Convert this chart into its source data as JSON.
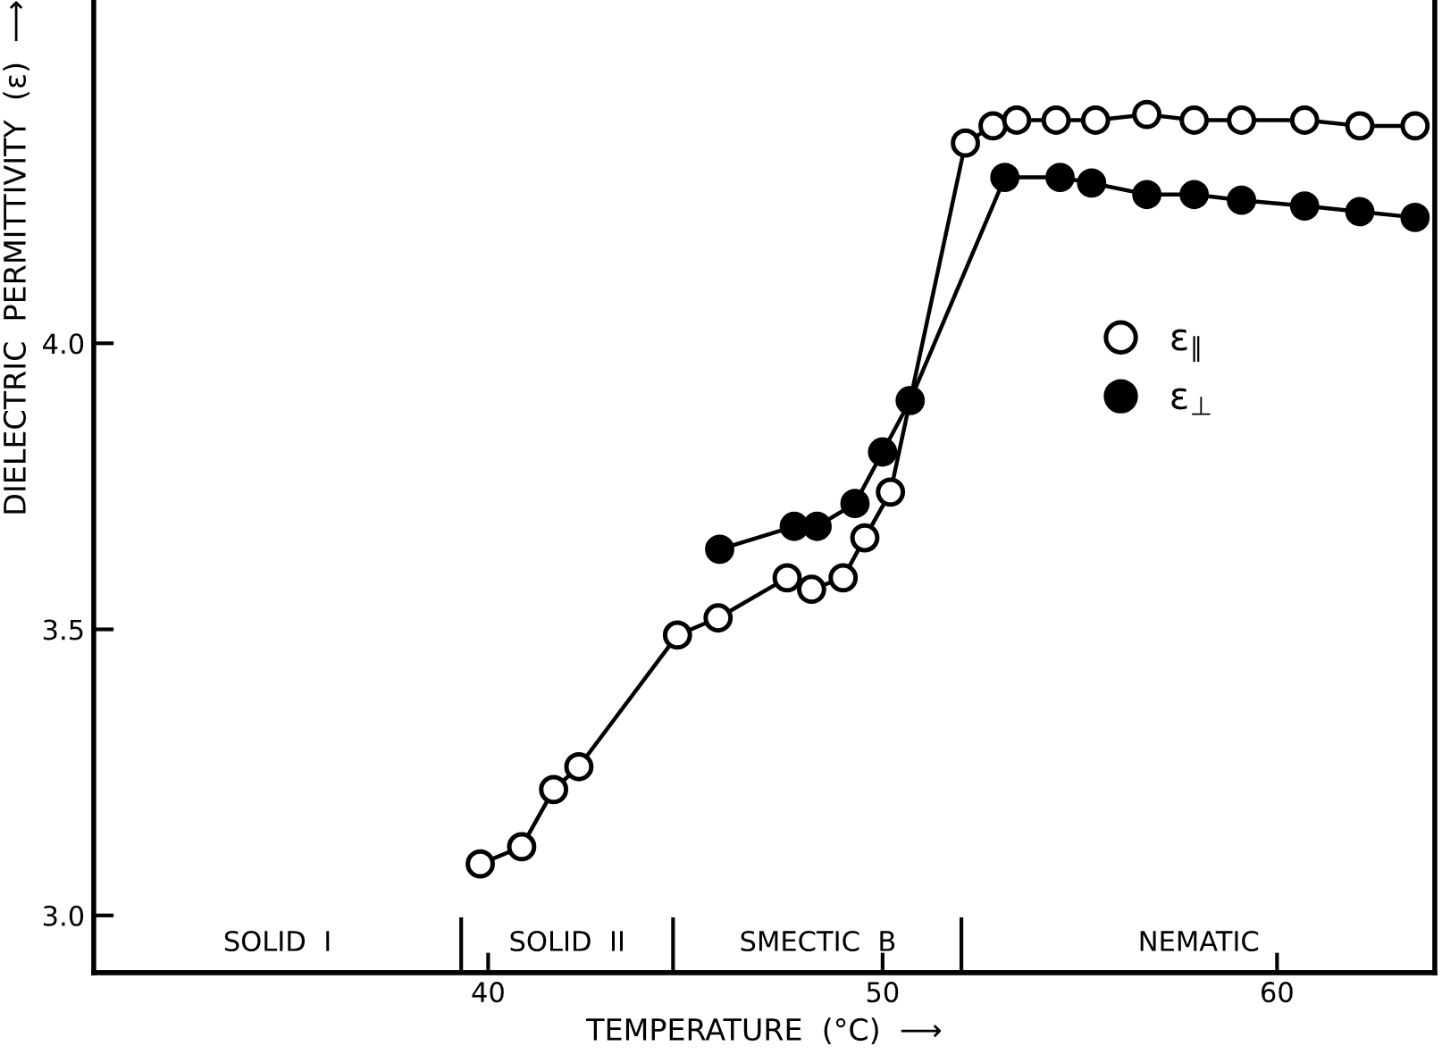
{
  "chart_data": {
    "type": "line",
    "xlabel": "TEMPERATURE  (°C)  ⟶",
    "ylabel": "DIELECTRIC  PERMITTIVITY  (ε)  ⟶",
    "xlim": [
      30,
      64
    ],
    "ylim": [
      2.9,
      4.6
    ],
    "xticks": [
      40,
      50,
      60
    ],
    "yticks": [
      {
        "value": 3,
        "label": "3.0"
      },
      {
        "value": 3.5,
        "label": "3.5"
      },
      {
        "value": 4,
        "label": "4.0"
      }
    ],
    "grid": false,
    "legend": "right",
    "line_style": "solid",
    "series": [
      {
        "name": "ε$_{∥}$",
        "color": "#ffffff",
        "marker": "circle",
        "x": [
          39.8,
          40.85,
          41.66,
          42.3,
          44.8,
          45.83,
          47.58,
          48.2,
          49.0,
          49.55,
          50.2,
          52.1,
          52.8,
          53.4,
          54.4,
          55.4,
          56.7,
          57.9,
          59.1,
          60.7,
          62.1,
          63.5
        ],
        "values": [
          3.09,
          3.12,
          3.22,
          3.26,
          3.49,
          3.52,
          3.59,
          3.57,
          3.59,
          3.66,
          3.74,
          4.35,
          4.38,
          4.39,
          4.39,
          4.39,
          4.4,
          4.39,
          4.39,
          4.39,
          4.38,
          4.38
        ]
      },
      {
        "name": "ε$_{⊥}$",
        "color": "#000000",
        "marker": "circle",
        "x": [
          45.87,
          47.76,
          48.34,
          49.3,
          50.0,
          50.7,
          53.1,
          54.5,
          55.3,
          56.7,
          57.9,
          59.1,
          60.7,
          62.1,
          63.5
        ],
        "values": [
          3.64,
          3.68,
          3.68,
          3.72,
          3.81,
          3.9,
          4.29,
          4.29,
          4.28,
          4.26,
          4.26,
          4.25,
          4.24,
          4.23,
          4.22
        ]
      }
    ],
    "annotations": [
      "SOLID  I",
      "SOLID  II",
      "SMECTIC  B",
      "NEMATIC"
    ]
  }
}
